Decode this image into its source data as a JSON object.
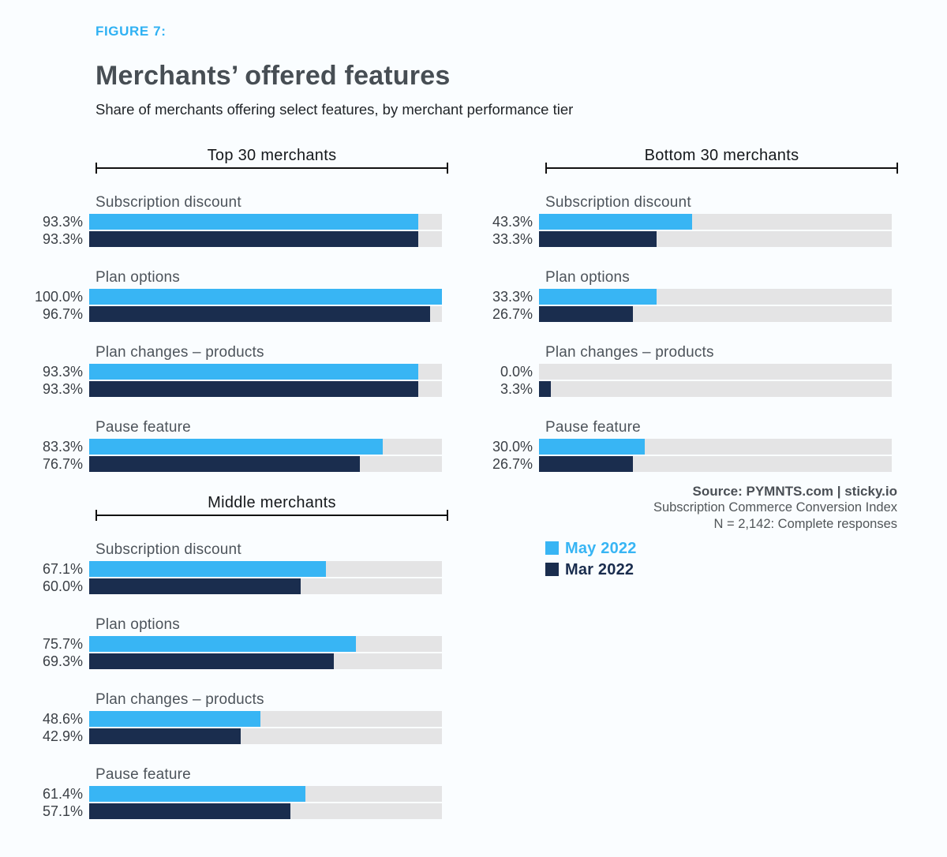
{
  "page": {
    "background": "#fafdff"
  },
  "header": {
    "figure_label": "FIGURE 7:",
    "title": "Merchants’ offered features",
    "subtitle": "Share of merchants offering select features, by merchant performance tier"
  },
  "source": {
    "attribution": "Source: PYMNTS.com  |  sticky.io",
    "index_name": "Subscription Commerce Conversion Index",
    "sample_size": "N = 2,142: Complete responses"
  },
  "legend": {
    "position": "right-column-below-source",
    "items": [
      {
        "label": "May 2022",
        "color": "#38b5f4"
      },
      {
        "label": "Mar 2022",
        "color": "#1a2d4e"
      }
    ]
  },
  "colors": {
    "accent_blue": "#2fb1f3",
    "series_may": "#38b5f4",
    "series_mar": "#1a2d4e",
    "bar_track": "#e4e4e5",
    "bracket": "#121212",
    "background": "#fafdff"
  },
  "chart_data": {
    "type": "bar",
    "orientation": "horizontal",
    "unit": "%",
    "xlim": [
      0,
      100
    ],
    "grid": false,
    "value_label_format": "one_decimal_percent",
    "series_names": [
      "May 2022",
      "Mar 2022"
    ],
    "series_colors": [
      "#38b5f4",
      "#1a2d4e"
    ],
    "track_color": "#e4e4e5",
    "groups": [
      {
        "title": "Top 30 merchants",
        "column": "left",
        "features": [
          {
            "label": "Subscription discount",
            "values": [
              93.3,
              93.3
            ]
          },
          {
            "label": "Plan options",
            "values": [
              100.0,
              96.7
            ]
          },
          {
            "label": "Plan changes – products",
            "values": [
              93.3,
              93.3
            ]
          },
          {
            "label": "Pause feature",
            "values": [
              83.3,
              76.7
            ]
          }
        ]
      },
      {
        "title": "Bottom 30 merchants",
        "column": "right",
        "features": [
          {
            "label": "Subscription discount",
            "values": [
              43.3,
              33.3
            ]
          },
          {
            "label": "Plan options",
            "values": [
              33.3,
              26.7
            ]
          },
          {
            "label": "Plan changes – products",
            "values": [
              0.0,
              3.3
            ]
          },
          {
            "label": "Pause feature",
            "values": [
              30.0,
              26.7
            ]
          }
        ]
      },
      {
        "title": "Middle merchants",
        "column": "left",
        "features": [
          {
            "label": "Subscription discount",
            "values": [
              67.1,
              60.0
            ]
          },
          {
            "label": "Plan options",
            "values": [
              75.7,
              69.3
            ]
          },
          {
            "label": "Plan changes – products",
            "values": [
              48.6,
              42.9
            ]
          },
          {
            "label": "Pause feature",
            "values": [
              61.4,
              57.1
            ]
          }
        ]
      }
    ]
  }
}
